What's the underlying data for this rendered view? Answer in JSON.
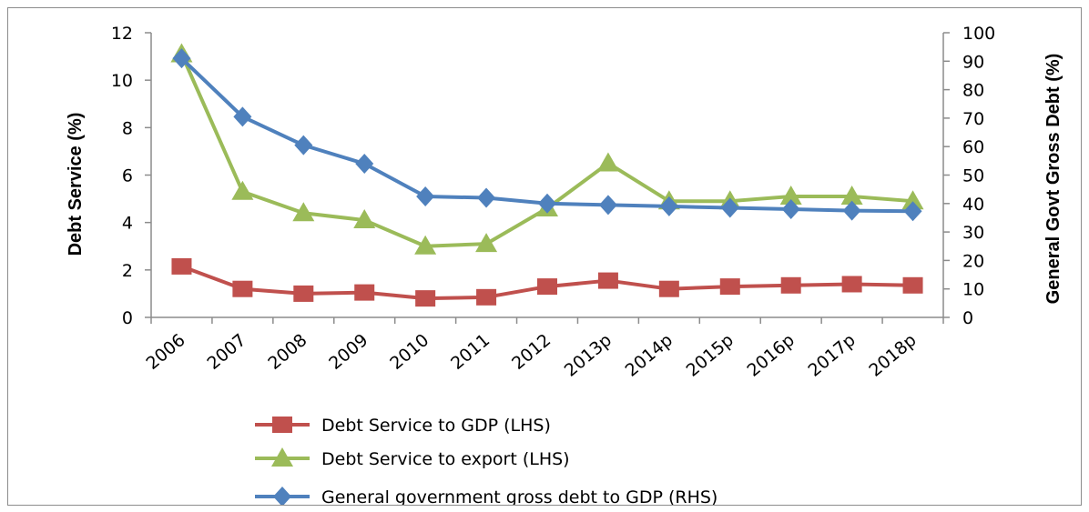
{
  "chart_data": {
    "type": "line",
    "categories": [
      "2006",
      "2007",
      "2008",
      "2009",
      "2010",
      "2011",
      "2012",
      "2013p",
      "2014p",
      "2015p",
      "2016p",
      "2017p",
      "2018p"
    ],
    "ylabel": "Debt Service (%)",
    "y2label": "General Govt Gross Debt (%)",
    "ylim": [
      0,
      12
    ],
    "y2lim": [
      0,
      100
    ],
    "yticks": [
      "0",
      "2",
      "4",
      "6",
      "8",
      "10",
      "12"
    ],
    "y2ticks": [
      "0",
      "10",
      "20",
      "30",
      "40",
      "50",
      "60",
      "70",
      "80",
      "90",
      "100"
    ],
    "grid": false,
    "legend_position": "bottom",
    "series": [
      {
        "name": "Debt Service to GDP (LHS)",
        "axis": "left",
        "color": "#c0504d",
        "marker": "square",
        "values": [
          2.15,
          1.2,
          1.0,
          1.05,
          0.8,
          0.85,
          1.3,
          1.55,
          1.2,
          1.3,
          1.35,
          1.4,
          1.35
        ]
      },
      {
        "name": "Debt Service to export (LHS)",
        "axis": "left",
        "color": "#9bbb59",
        "marker": "triangle",
        "values": [
          11.1,
          5.3,
          4.4,
          4.1,
          3.0,
          3.1,
          4.6,
          6.5,
          4.9,
          4.9,
          5.1,
          5.1,
          4.9
        ]
      },
      {
        "name": "General government gross debt to GDP (RHS)",
        "axis": "right",
        "color": "#4f81bd",
        "marker": "diamond",
        "values": [
          91,
          70.5,
          60.5,
          54,
          42.5,
          42,
          40,
          39.5,
          39,
          38.5,
          38,
          37.5,
          37.3
        ]
      }
    ]
  }
}
